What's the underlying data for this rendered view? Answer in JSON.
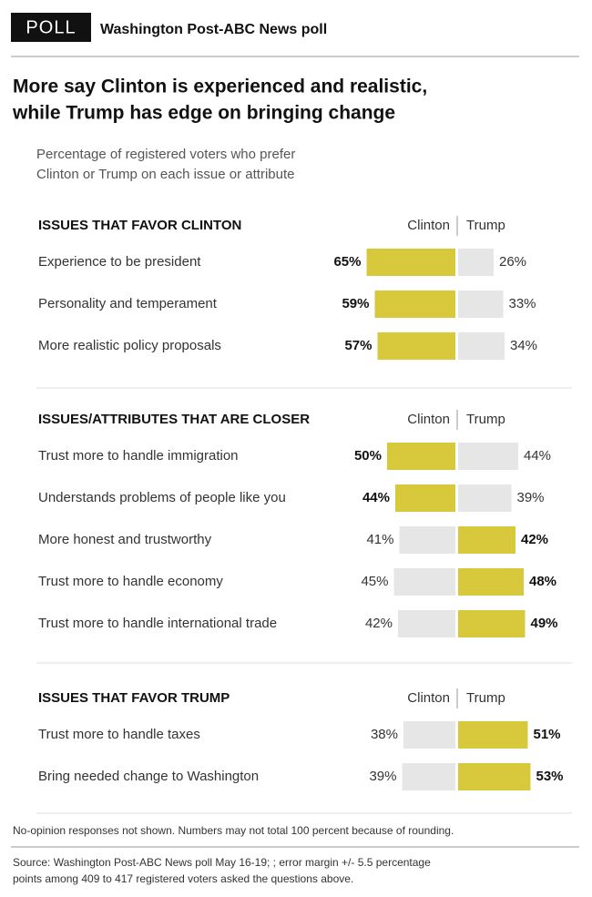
{
  "header": {
    "tag": "POLL",
    "source": "Washington Post-ABC News poll"
  },
  "title": [
    "More say Clinton is experienced and realistic,",
    "while Trump has edge on bringing change"
  ],
  "subtitle": [
    "Percentage of registered voters who prefer",
    "Clinton or Trump on each issue or attribute"
  ],
  "chart_data": [
    {
      "type": "bar",
      "title": "ISSUES THAT FAVOR CLINTON",
      "categories": [
        "Experience to be president",
        "Personality and temperament",
        "More realistic policy proposals"
      ],
      "series": [
        {
          "name": "Clinton",
          "values": [
            65,
            59,
            57
          ],
          "value_labels": [
            "65%",
            "59%",
            "57%"
          ]
        },
        {
          "name": "Trump",
          "values": [
            26,
            33,
            34
          ],
          "value_labels": [
            "26%",
            "33%",
            "34%"
          ]
        }
      ],
      "highlight_color": "#d8c93c",
      "base_color": "#e6e6e6"
    },
    {
      "type": "bar",
      "title": "ISSUES/ATTRIBUTES THAT ARE CLOSER",
      "categories": [
        "Trust more to handle immigration",
        "Understands problems of people like you",
        "More honest and trustworthy",
        "Trust more to handle economy",
        "Trust more to handle international trade"
      ],
      "series": [
        {
          "name": "Clinton",
          "values": [
            50,
            44,
            41,
            45,
            42
          ],
          "value_labels": [
            "50%",
            "44%",
            "41%",
            "45%",
            "42%"
          ]
        },
        {
          "name": "Trump",
          "values": [
            44,
            39,
            42,
            48,
            49
          ],
          "value_labels": [
            "44%",
            "39%",
            "42%",
            "48%",
            "49%"
          ]
        }
      ],
      "highlight_color": "#d8c93c",
      "base_color": "#e6e6e6"
    },
    {
      "type": "bar",
      "title": "ISSUES THAT FAVOR TRUMP",
      "categories": [
        "Trust more to handle taxes",
        "Bring needed change to Washington"
      ],
      "series": [
        {
          "name": "Clinton",
          "values": [
            38,
            39
          ],
          "value_labels": [
            "38%",
            "39%"
          ]
        },
        {
          "name": "Trump",
          "values": [
            51,
            53
          ],
          "value_labels": [
            "51%",
            "53%"
          ]
        }
      ],
      "highlight_color": "#d8c93c",
      "base_color": "#e6e6e6"
    }
  ],
  "note": "No-opinion responses not shown. Numbers may not total 100 percent because of rounding.",
  "source": [
    "Source: Washington Post-ABC News poll May 16-19; ; error margin +/- 5.5 percentage",
    "points among 409 to 417 registered voters asked the questions above."
  ]
}
